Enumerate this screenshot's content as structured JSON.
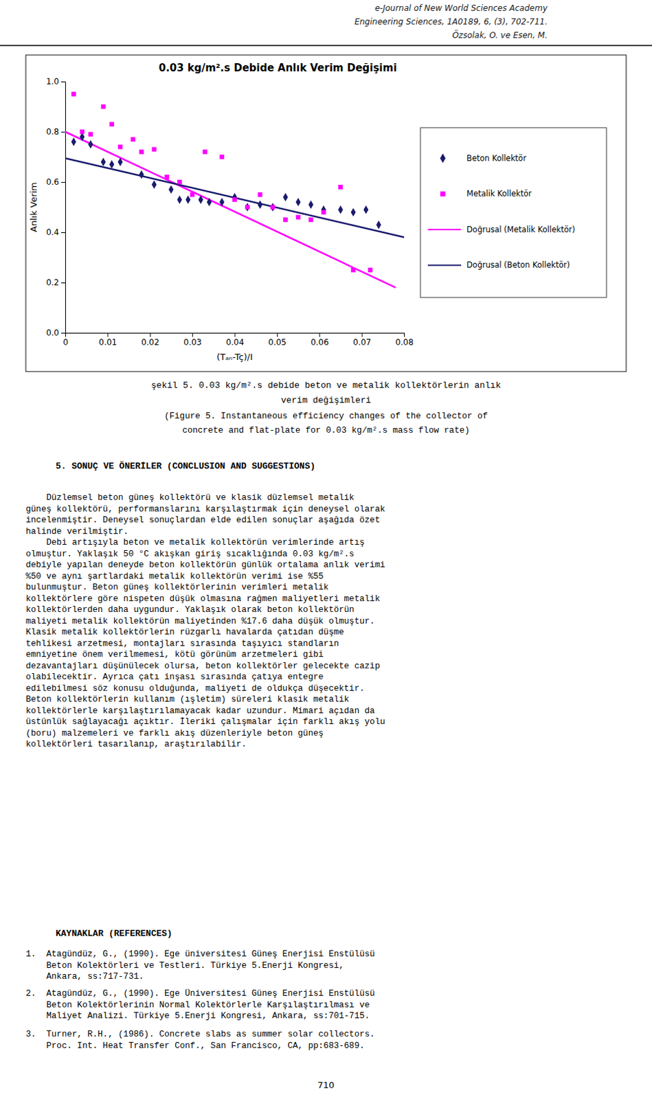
{
  "chart_data": {
    "type": "scatter",
    "title": "0.03 kg/m².s Debide Anlık Verim Değişimi",
    "xlabel": "(Tₐₙ-Tç)/I",
    "ylabel": "Anlık Verim",
    "xlim": [
      0,
      0.08
    ],
    "ylim": [
      0,
      1
    ],
    "xticks": [
      0,
      0.01,
      0.02,
      0.03,
      0.04,
      0.05,
      0.06,
      0.07,
      0.08
    ],
    "yticks": [
      {
        "value": 0,
        "label": "0.0"
      },
      0.2,
      0.4,
      0.6,
      0.8,
      {
        "value": 1,
        "label": "1.0"
      }
    ],
    "grid": false,
    "legend": "right",
    "series": [
      {
        "name": "Beton Kollektör",
        "type": "scatter",
        "marker": "diamond",
        "color": "#1a1a6e",
        "x": [
          0.002,
          0.004,
          0.006,
          0.009,
          0.011,
          0.013,
          0.018,
          0.021,
          0.025,
          0.027,
          0.029,
          0.032,
          0.034,
          0.037,
          0.04,
          0.043,
          0.046,
          0.049,
          0.052,
          0.055,
          0.058,
          0.061,
          0.065,
          0.068,
          0.071,
          0.074
        ],
        "values": [
          0.76,
          0.78,
          0.75,
          0.68,
          0.67,
          0.68,
          0.63,
          0.59,
          0.57,
          0.53,
          0.53,
          0.53,
          0.52,
          0.52,
          0.54,
          0.5,
          0.51,
          0.5,
          0.54,
          0.52,
          0.51,
          0.49,
          0.49,
          0.48,
          0.49,
          0.43
        ]
      },
      {
        "name": "Metalik Kollektör",
        "type": "scatter",
        "marker": "square",
        "color": "#ff00ff",
        "x": [
          0.002,
          0.004,
          0.006,
          0.009,
          0.011,
          0.013,
          0.016,
          0.018,
          0.021,
          0.024,
          0.027,
          0.03,
          0.033,
          0.037,
          0.04,
          0.043,
          0.046,
          0.049,
          0.052,
          0.055,
          0.058,
          0.061,
          0.065,
          0.068,
          0.072
        ],
        "values": [
          0.95,
          0.8,
          0.79,
          0.9,
          0.83,
          0.74,
          0.77,
          0.72,
          0.73,
          0.62,
          0.6,
          0.55,
          0.72,
          0.7,
          0.53,
          0.5,
          0.55,
          0.5,
          0.45,
          0.46,
          0.45,
          0.48,
          0.58,
          0.25,
          0.25
        ]
      },
      {
        "name": "Doğrusal (Metalik Kollektör)",
        "type": "line",
        "line_style": "solid",
        "color": "#ff00ff",
        "x": [
          0,
          0.078
        ],
        "values": [
          0.8,
          0.18
        ]
      },
      {
        "name": "Doğrusal (Beton Kollektör)",
        "type": "line",
        "line_style": "solid",
        "color": "#1a1a6e",
        "x": [
          0,
          0.08
        ],
        "values": [
          0.695,
          0.38
        ]
      }
    ]
  },
  "page": {
    "header": [
      "e-Journal of New World Sciences Academy",
      "Engineering Sciences, 1A0189, 6, (3), 702-711.",
      "Özsolak, O. ve Esen, M."
    ],
    "caption": [
      "şekil 5. 0.03 kg/m².s debide beton ve metalik kollektörlerin anlık",
      "verim değişimleri",
      "(Figure 5. Instantaneous efficiency changes of the collector of",
      "concrete and flat-plate for 0.03 kg/m².s mass flow rate)"
    ],
    "section_title": "5. SONUÇ VE ÖNERİLER (CONCLUSION AND SUGGESTIONS)",
    "body": [
      "    Düzlemsel beton güneş kollektörü ve klasik düzlemsel metalik",
      "güneş kollektörü, performanslarını karşılaştırmak için deneysel olarak",
      "incelenmiştir. Deneysel sonuçlardan elde edilen sonuçlar aşağıda özet",
      "halinde verilmiştir.",
      "    Debi artışıyla beton ve metalik kollektörün verimlerinde artış",
      "olmuştur. Yaklaşık 50 °C akışkan giriş sıcaklığında 0.03 kg/m².s",
      "debiyle yapılan deneyde beton kollektörün günlük ortalama anlık verimi",
      "%50 ve aynı şartlardaki metalik kollektörün verimi ise %55",
      "bulunmuştur. Beton güneş kollektörlerinin verimleri metalik",
      "kollektörlere göre nispeten düşük olmasına rağmen maliyetleri metalik",
      "kollektörlerden daha uygundur. Yaklaşık olarak beton kollektörün",
      "maliyeti metalik kollektörün maliyetinden %17.6 daha düşük olmuştur.",
      "Klasik metalik kollektörlerin rüzgarlı havalarda çatıdan düşme",
      "tehlikesi arzetmesi, montajları sırasında taşıyıcı standların",
      "emniyetine önem verilmemesi, kötü görünüm arzetmeleri gibi",
      "dezavantajları düşünülecek olursa, beton kollektörler gelecekte cazip",
      "olabilecektir. Ayrıca çatı inşası sırasında çatıya entegre",
      "edilebilmesi söz konusu olduğunda, maliyeti de oldukça düşecektir.",
      "Beton kollektörlerin kullanım (ışletim) süreleri klasik metalik",
      "kollektörlerle karşılaştırılamayacak kadar uzundur. Mimari açıdan da",
      "üstünlük sağlayacağı açıktır. İleriki çalışmalar için farklı akış yolu",
      "(boru) malzemeleri ve farklı akış düzenleriyle beton güneş",
      "kollektörleri tasarılanıp, araştırılabilir."
    ],
    "references_title": "KAYNAKLAR (REFERENCES)",
    "references": [
      [
        "1.  Atagündüz, G., (1990). Ege üniversitesi Güneş Enerjisi Enstülüsü",
        "    Beton Kolektörleri ve Testleri. Türkiye 5.Enerji Kongresi,",
        "    Ankara, ss:717-731."
      ],
      [
        "2.  Atagündüz, G., (1990). Ege Üniversitesi Güneş Enerjisi Enstülüsü",
        "    Beton Kolektörlerinin Normal Kolektörlerle Karşılaştırılması ve",
        "    Maliyet Analizi. Türkiye 5.Enerji Kongresi, Ankara, ss:701-715."
      ],
      [
        "3.  Turner, R.H., (1986). Concrete slabs as summer solar collectors.",
        "    Proc. Int. Heat Transfer Conf., San Francisco, CA, pp:683-689."
      ]
    ],
    "page_number": "710"
  }
}
